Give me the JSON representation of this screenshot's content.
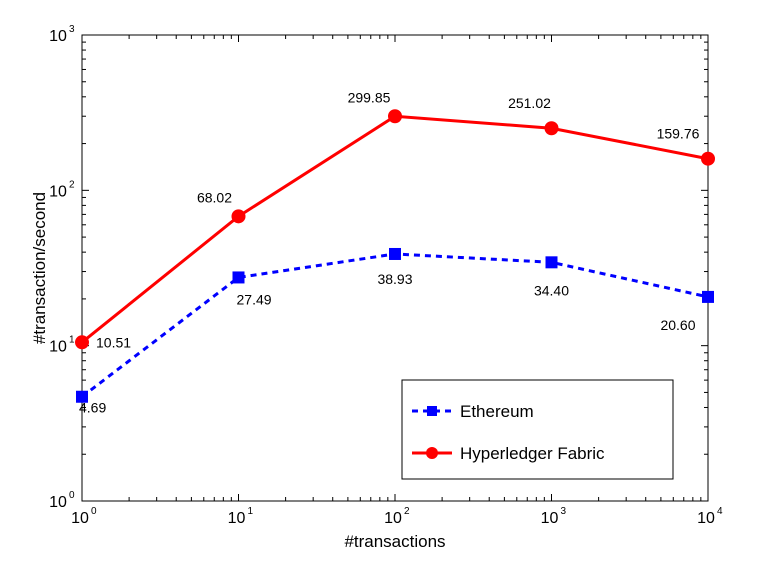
{
  "chart_data": {
    "type": "line",
    "x_scale": "log",
    "y_scale": "log",
    "x": [
      1,
      10,
      100,
      1000,
      10000
    ],
    "xlim": [
      1,
      10000
    ],
    "ylim": [
      1,
      1000
    ],
    "x_ticks": [
      {
        "base": "10",
        "exp": "0"
      },
      {
        "base": "10",
        "exp": "1"
      },
      {
        "base": "10",
        "exp": "2"
      },
      {
        "base": "10",
        "exp": "3"
      },
      {
        "base": "10",
        "exp": "4"
      }
    ],
    "y_ticks": [
      {
        "base": "10",
        "exp": "0"
      },
      {
        "base": "10",
        "exp": "1"
      },
      {
        "base": "10",
        "exp": "2"
      },
      {
        "base": "10",
        "exp": "3"
      }
    ],
    "xlabel": "#transactions",
    "ylabel": "#transaction/second",
    "grid": false,
    "legend_position": "bottom-right",
    "series": [
      {
        "name": "Ethereum",
        "color": "#0000ff",
        "line_style": "dashed",
        "marker": "square",
        "values": [
          4.69,
          27.49,
          38.93,
          34.4,
          20.6
        ],
        "labels": [
          "4.69",
          "27.49",
          "38.93",
          "34.40",
          "20.60"
        ]
      },
      {
        "name": "Hyperledger Fabric",
        "color": "#ff0000",
        "line_style": "solid",
        "marker": "circle",
        "values": [
          10.51,
          68.02,
          299.85,
          251.02,
          159.76
        ],
        "labels": [
          "10.51",
          "68.02",
          "299.85",
          "251.02",
          "159.76"
        ]
      }
    ]
  }
}
